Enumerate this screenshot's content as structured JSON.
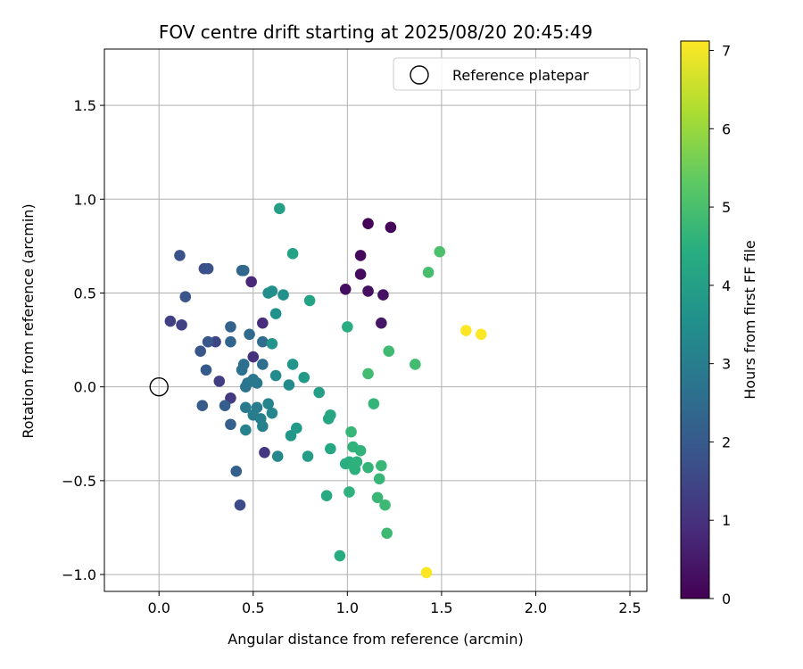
{
  "chart_data": {
    "type": "scatter",
    "title": "FOV centre drift starting at 2025/08/20 20:45:49",
    "xlabel": "Angular distance from reference (arcmin)",
    "ylabel": "Rotation from reference (arcmin)",
    "xlim": [
      -0.29,
      2.59
    ],
    "ylim": [
      -1.09,
      1.8
    ],
    "xticks": [
      0.0,
      0.5,
      1.0,
      1.5,
      2.0,
      2.5
    ],
    "xtick_labels": [
      "0.0",
      "0.5",
      "1.0",
      "1.5",
      "2.0",
      "2.5"
    ],
    "yticks": [
      -1.0,
      -0.5,
      0.0,
      0.5,
      1.0,
      1.5
    ],
    "ytick_labels": [
      "−1.0",
      "−0.5",
      "0.0",
      "0.5",
      "1.0",
      "1.5"
    ],
    "grid": true,
    "legend": {
      "placement": "top-right",
      "entries": [
        "Reference platepar"
      ]
    },
    "reference_point": {
      "x": 0.0,
      "y": 0.0
    },
    "colorbar": {
      "label": "Hours from first FF file",
      "colormap": "viridis",
      "range": [
        0,
        7.12
      ],
      "ticks": [
        0,
        1,
        2,
        3,
        4,
        5,
        6,
        7
      ],
      "tick_labels": [
        "0",
        "1",
        "2",
        "3",
        "4",
        "5",
        "6",
        "7"
      ]
    },
    "points": [
      {
        "x": 1.11,
        "y": 0.87,
        "c": 0.05
      },
      {
        "x": 1.23,
        "y": 0.85,
        "c": 0.1
      },
      {
        "x": 1.07,
        "y": 0.7,
        "c": 0.15
      },
      {
        "x": 1.07,
        "y": 0.6,
        "c": 0.2
      },
      {
        "x": 0.99,
        "y": 0.52,
        "c": 0.25
      },
      {
        "x": 1.11,
        "y": 0.51,
        "c": 0.3
      },
      {
        "x": 1.19,
        "y": 0.49,
        "c": 0.35
      },
      {
        "x": 1.18,
        "y": 0.34,
        "c": 0.4
      },
      {
        "x": 0.49,
        "y": 0.56,
        "c": 0.8
      },
      {
        "x": 0.55,
        "y": 0.34,
        "c": 0.9
      },
      {
        "x": 0.5,
        "y": 0.16,
        "c": 1.0
      },
      {
        "x": 0.56,
        "y": -0.35,
        "c": 1.1
      },
      {
        "x": 0.38,
        "y": -0.06,
        "c": 1.2
      },
      {
        "x": 0.32,
        "y": 0.03,
        "c": 1.3
      },
      {
        "x": 0.06,
        "y": 0.35,
        "c": 1.35
      },
      {
        "x": 0.12,
        "y": 0.33,
        "c": 1.4
      },
      {
        "x": 0.3,
        "y": 0.24,
        "c": 1.5
      },
      {
        "x": 0.43,
        "y": -0.63,
        "c": 1.6
      },
      {
        "x": 0.24,
        "y": 0.63,
        "c": 1.7
      },
      {
        "x": 0.26,
        "y": 0.63,
        "c": 1.75
      },
      {
        "x": 0.11,
        "y": 0.7,
        "c": 1.8
      },
      {
        "x": 0.14,
        "y": 0.48,
        "c": 1.85
      },
      {
        "x": 0.22,
        "y": 0.19,
        "c": 1.9
      },
      {
        "x": 0.26,
        "y": 0.24,
        "c": 1.95
      },
      {
        "x": 0.25,
        "y": 0.09,
        "c": 2.0
      },
      {
        "x": 0.23,
        "y": -0.1,
        "c": 2.05
      },
      {
        "x": 0.35,
        "y": -0.1,
        "c": 2.1
      },
      {
        "x": 0.38,
        "y": -0.2,
        "c": 2.15
      },
      {
        "x": 0.41,
        "y": -0.45,
        "c": 2.2
      },
      {
        "x": 0.38,
        "y": 0.32,
        "c": 2.25
      },
      {
        "x": 0.38,
        "y": 0.24,
        "c": 2.3
      },
      {
        "x": 0.44,
        "y": 0.62,
        "c": 2.35
      },
      {
        "x": 0.45,
        "y": 0.62,
        "c": 2.4
      },
      {
        "x": 0.48,
        "y": 0.28,
        "c": 2.45
      },
      {
        "x": 0.55,
        "y": 0.24,
        "c": 2.5
      },
      {
        "x": 0.55,
        "y": 0.12,
        "c": 2.55
      },
      {
        "x": 0.45,
        "y": 0.12,
        "c": 2.6
      },
      {
        "x": 0.44,
        "y": 0.09,
        "c": 2.65
      },
      {
        "x": 0.46,
        "y": 0.0,
        "c": 2.7
      },
      {
        "x": 0.47,
        "y": 0.02,
        "c": 2.75
      },
      {
        "x": 0.5,
        "y": 0.04,
        "c": 2.8
      },
      {
        "x": 0.52,
        "y": 0.02,
        "c": 2.85
      },
      {
        "x": 0.46,
        "y": -0.11,
        "c": 2.9
      },
      {
        "x": 0.52,
        "y": -0.11,
        "c": 2.95
      },
      {
        "x": 0.5,
        "y": -0.15,
        "c": 3.0
      },
      {
        "x": 0.54,
        "y": -0.17,
        "c": 3.05
      },
      {
        "x": 0.55,
        "y": -0.21,
        "c": 3.1
      },
      {
        "x": 0.46,
        "y": -0.23,
        "c": 3.15
      },
      {
        "x": 0.58,
        "y": -0.09,
        "c": 3.2
      },
      {
        "x": 0.6,
        "y": -0.14,
        "c": 3.25
      },
      {
        "x": 0.63,
        "y": -0.37,
        "c": 3.3
      },
      {
        "x": 0.62,
        "y": 0.06,
        "c": 3.35
      },
      {
        "x": 0.69,
        "y": 0.01,
        "c": 3.4
      },
      {
        "x": 0.58,
        "y": 0.5,
        "c": 3.45
      },
      {
        "x": 0.6,
        "y": 0.51,
        "c": 3.5
      },
      {
        "x": 0.66,
        "y": 0.49,
        "c": 3.55
      },
      {
        "x": 0.62,
        "y": 0.39,
        "c": 3.6
      },
      {
        "x": 0.6,
        "y": 0.23,
        "c": 3.65
      },
      {
        "x": 0.71,
        "y": 0.12,
        "c": 3.7
      },
      {
        "x": 0.7,
        "y": -0.26,
        "c": 3.75
      },
      {
        "x": 0.73,
        "y": -0.22,
        "c": 3.8
      },
      {
        "x": 0.77,
        "y": 0.05,
        "c": 3.85
      },
      {
        "x": 0.79,
        "y": -0.37,
        "c": 3.9
      },
      {
        "x": 0.85,
        "y": -0.03,
        "c": 3.95
      },
      {
        "x": 0.64,
        "y": 0.95,
        "c": 4.0
      },
      {
        "x": 0.71,
        "y": 0.71,
        "c": 4.05
      },
      {
        "x": 0.8,
        "y": 0.46,
        "c": 4.1
      },
      {
        "x": 0.9,
        "y": -0.17,
        "c": 4.15
      },
      {
        "x": 0.91,
        "y": -0.15,
        "c": 4.2
      },
      {
        "x": 0.91,
        "y": -0.33,
        "c": 4.25
      },
      {
        "x": 0.89,
        "y": -0.58,
        "c": 4.3
      },
      {
        "x": 0.96,
        "y": -0.9,
        "c": 4.35
      },
      {
        "x": 1.0,
        "y": 0.32,
        "c": 4.4
      },
      {
        "x": 0.99,
        "y": -0.41,
        "c": 4.45
      },
      {
        "x": 1.01,
        "y": -0.4,
        "c": 4.45
      },
      {
        "x": 1.03,
        "y": -0.42,
        "c": 4.5
      },
      {
        "x": 1.04,
        "y": -0.44,
        "c": 4.5
      },
      {
        "x": 1.05,
        "y": -0.4,
        "c": 4.55
      },
      {
        "x": 1.01,
        "y": -0.56,
        "c": 4.55
      },
      {
        "x": 1.03,
        "y": -0.32,
        "c": 4.6
      },
      {
        "x": 1.07,
        "y": -0.34,
        "c": 4.6
      },
      {
        "x": 1.11,
        "y": -0.43,
        "c": 4.65
      },
      {
        "x": 1.14,
        "y": -0.09,
        "c": 4.65
      },
      {
        "x": 1.02,
        "y": -0.24,
        "c": 4.7
      },
      {
        "x": 1.17,
        "y": -0.49,
        "c": 4.7
      },
      {
        "x": 1.16,
        "y": -0.59,
        "c": 4.75
      },
      {
        "x": 1.18,
        "y": -0.42,
        "c": 4.75
      },
      {
        "x": 1.2,
        "y": -0.63,
        "c": 4.8
      },
      {
        "x": 1.21,
        "y": -0.78,
        "c": 4.8
      },
      {
        "x": 1.22,
        "y": 0.19,
        "c": 4.85
      },
      {
        "x": 1.11,
        "y": 0.07,
        "c": 4.9
      },
      {
        "x": 1.36,
        "y": 0.12,
        "c": 4.9
      },
      {
        "x": 1.43,
        "y": 0.61,
        "c": 4.95
      },
      {
        "x": 1.49,
        "y": 0.72,
        "c": 5.05
      },
      {
        "x": 1.63,
        "y": 0.3,
        "c": 7.1
      },
      {
        "x": 1.71,
        "y": 0.28,
        "c": 7.1
      },
      {
        "x": 1.42,
        "y": -0.99,
        "c": 7.12
      }
    ]
  }
}
